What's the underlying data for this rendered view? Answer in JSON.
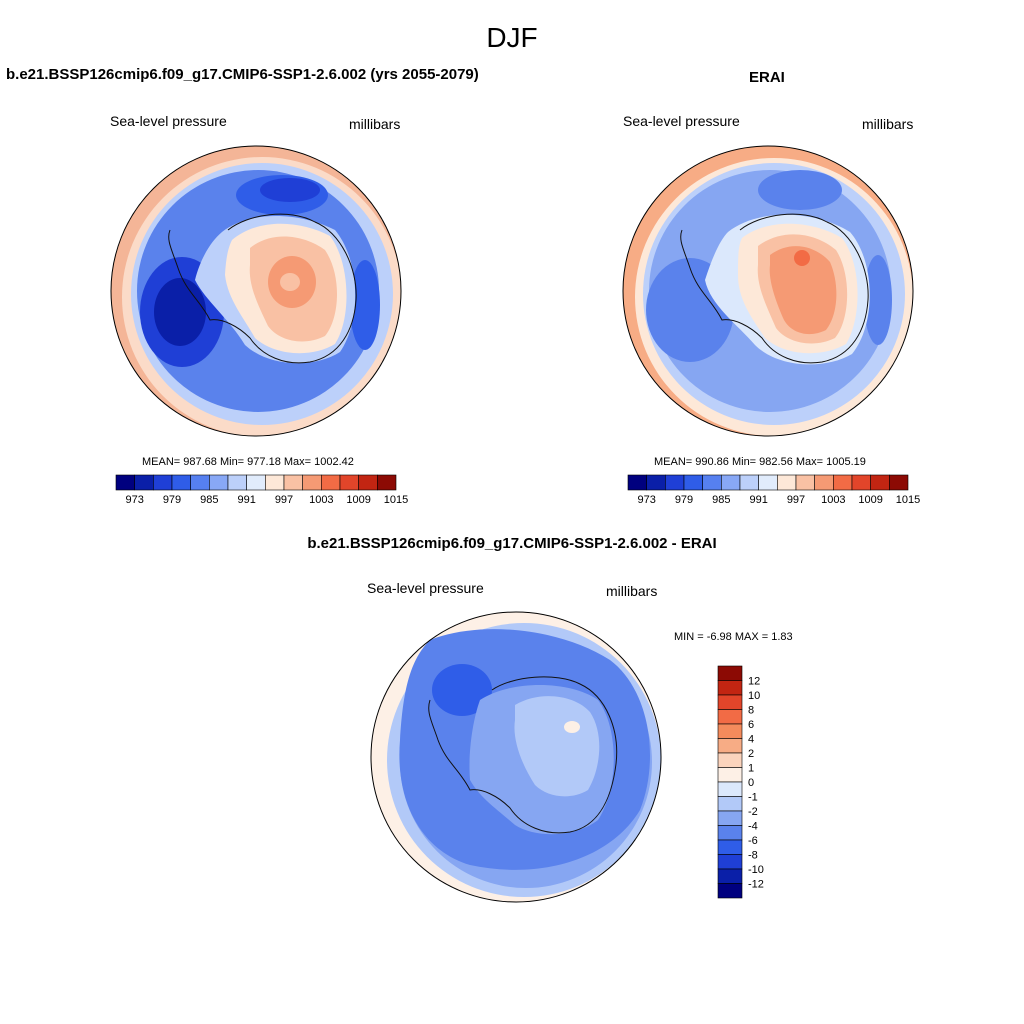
{
  "figure": {
    "title": "DJF"
  },
  "panels": {
    "left": {
      "title": "b.e21.BSSP126cmip6.f09_g17.CMIP6-SSP1-2.6.002 (yrs 2055-2079)",
      "variable": "Sea-level pressure",
      "units": "millibars",
      "stats": "MEAN= 987.68  Min= 977.18  Max= 1002.42",
      "colorbar_labels": [
        "973",
        "979",
        "985",
        "991",
        "997",
        "1003",
        "1009",
        "1015"
      ]
    },
    "right": {
      "title": "ERAI",
      "variable": "Sea-level pressure",
      "units": "millibars",
      "stats": "MEAN= 990.86  Min= 982.56  Max= 1005.19",
      "colorbar_labels": [
        "973",
        "979",
        "985",
        "991",
        "997",
        "1003",
        "1009",
        "1015"
      ]
    },
    "diff": {
      "title": "b.e21.BSSP126cmip6.f09_g17.CMIP6-SSP1-2.6.002 - ERAI",
      "variable": "Sea-level pressure",
      "units": "millibars",
      "stats": "MIN =  -6.98 MAX =   1.83",
      "colorbar_labels": [
        "12",
        "10",
        "8",
        "6",
        "4",
        "2",
        "1",
        "0",
        "-1",
        "-2",
        "-4",
        "-6",
        "-8",
        "-10",
        "-12"
      ]
    }
  },
  "colors": {
    "abs_scale": [
      "#00007f",
      "#0a1fa8",
      "#1f3fd6",
      "#2f5de8",
      "#5680f0",
      "#88a8f6",
      "#bcd0fa",
      "#e1ecfc",
      "#fde8d8",
      "#f9c1a4",
      "#f59a74",
      "#f26b45",
      "#e2452a",
      "#c22512",
      "#8c0a04"
    ],
    "diff_scale": [
      "#8c0a04",
      "#c22512",
      "#e2452a",
      "#f26b45",
      "#f48b5c",
      "#f7ac85",
      "#fbd4bd",
      "#fdf0e6",
      "#dbe8fc",
      "#b2c9f8",
      "#86a6f2",
      "#5a82ec",
      "#2f5de8",
      "#1f3fd6",
      "#0a1fa8",
      "#00007f"
    ]
  }
}
